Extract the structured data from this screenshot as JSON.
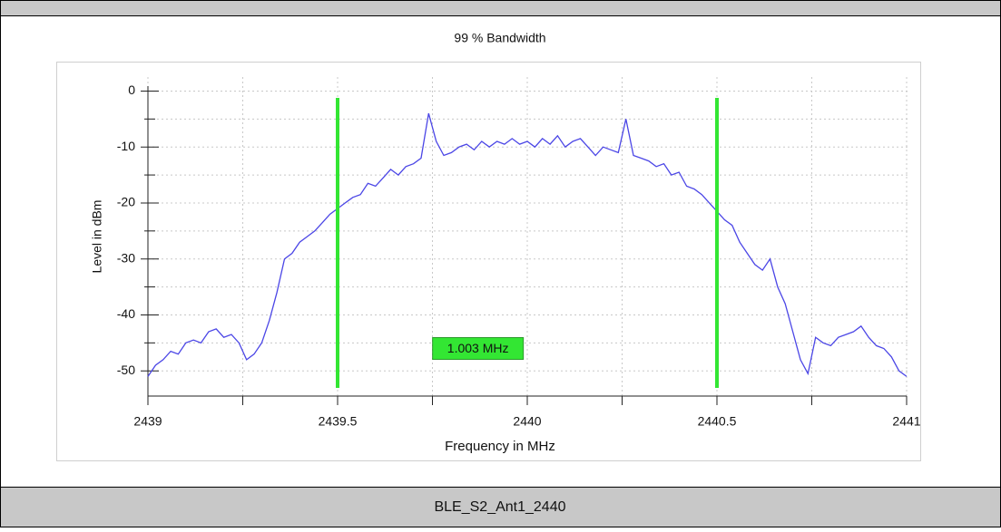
{
  "chart_data": {
    "type": "line",
    "title": "99 % Bandwidth",
    "xlabel": "Frequency in MHz",
    "ylabel": "Level in dBm",
    "footer": "BLE_S2_Ant1_2440",
    "xlim": [
      2439,
      2441
    ],
    "xticks": [
      2439,
      2439.5,
      2440,
      2440.5,
      2441
    ],
    "xminor_ticks": [
      2439.25,
      2439.75,
      2440.25,
      2440.75
    ],
    "ylim": [
      -54.5,
      2.5
    ],
    "yticks": [
      0,
      -10,
      -20,
      -30,
      -40,
      -50
    ],
    "yminor_ticks": [
      -5,
      -15,
      -25,
      -35,
      -45
    ],
    "grid": true,
    "markers": [
      2439.5,
      2440.5
    ],
    "marker_color": "#33e633",
    "annotation": {
      "text": "1.003 MHz",
      "x": 2439.87,
      "y": -46
    },
    "series": [
      {
        "name": "Level",
        "color": "#4b46e6",
        "x": [
          2439,
          2439.02,
          2439.04,
          2439.06,
          2439.08,
          2439.1,
          2439.12,
          2439.14,
          2439.16,
          2439.18,
          2439.2,
          2439.22,
          2439.24,
          2439.26,
          2439.28,
          2439.3,
          2439.32,
          2439.34,
          2439.36,
          2439.38,
          2439.4,
          2439.42,
          2439.44,
          2439.46,
          2439.48,
          2439.5,
          2439.52,
          2439.54,
          2439.56,
          2439.58,
          2439.6,
          2439.62,
          2439.64,
          2439.66,
          2439.68,
          2439.7,
          2439.72,
          2439.74,
          2439.76,
          2439.78,
          2439.8,
          2439.82,
          2439.84,
          2439.86,
          2439.88,
          2439.9,
          2439.92,
          2439.94,
          2439.96,
          2439.98,
          2440,
          2440.02,
          2440.04,
          2440.06,
          2440.08,
          2440.1,
          2440.12,
          2440.14,
          2440.16,
          2440.18,
          2440.2,
          2440.22,
          2440.24,
          2440.26,
          2440.28,
          2440.3,
          2440.32,
          2440.34,
          2440.36,
          2440.38,
          2440.4,
          2440.42,
          2440.44,
          2440.46,
          2440.48,
          2440.5,
          2440.52,
          2440.54,
          2440.56,
          2440.58,
          2440.6,
          2440.62,
          2440.64,
          2440.66,
          2440.68,
          2440.7,
          2440.72,
          2440.74,
          2440.76,
          2440.78,
          2440.8,
          2440.82,
          2440.84,
          2440.86,
          2440.88,
          2440.9,
          2440.92,
          2440.94,
          2440.96,
          2440.98,
          2441
        ],
        "values": [
          -51,
          -49,
          -48,
          -46.5,
          -47,
          -45,
          -44.5,
          -45,
          -43,
          -42.5,
          -44,
          -43.5,
          -45,
          -48,
          -47,
          -45,
          -41,
          -36,
          -30,
          -29,
          -27,
          -26,
          -25,
          -23.5,
          -22,
          -21,
          -20,
          -19,
          -18.5,
          -16.5,
          -17,
          -15.5,
          -14,
          -15,
          -13.5,
          -13,
          -12,
          -4,
          -9,
          -11.5,
          -11,
          -10,
          -9.5,
          -10.5,
          -9,
          -10,
          -9,
          -9.5,
          -8.5,
          -9.5,
          -9,
          -10,
          -8.5,
          -9.5,
          -8,
          -10,
          -9,
          -8.5,
          -10,
          -11.5,
          -10,
          -10.5,
          -11,
          -5,
          -11.5,
          -12,
          -12.5,
          -13.5,
          -13,
          -15,
          -14.5,
          -17,
          -17.5,
          -18.5,
          -20,
          -21.5,
          -23,
          -24,
          -27,
          -29,
          -31,
          -32,
          -30,
          -35,
          -38,
          -43,
          -48,
          -50.5,
          -44,
          -45,
          -45.5,
          -44,
          -43.5,
          -43,
          -42,
          -44,
          -45.5,
          -46,
          -47.5,
          -50,
          -51
        ]
      }
    ]
  }
}
